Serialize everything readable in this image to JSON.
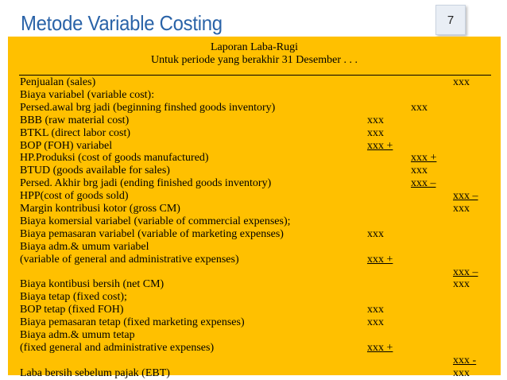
{
  "slide": {
    "title": "Metode Variable Costing",
    "page_number": "7"
  },
  "report": {
    "title": "Laporan Laba-Rugi",
    "period": "Untuk periode yang berakhir 31 Desember . . .",
    "rows": [
      {
        "label": "Penjualan (sales)",
        "c3": "xxx"
      },
      {
        "label": "Biaya variabel (variable cost):"
      },
      {
        "label": "Persed.awal brg jadi (beginning finshed goods inventory)",
        "c2": "xxx"
      },
      {
        "label": "BBB (raw material cost)",
        "c1": "xxx"
      },
      {
        "label": "BTKL (direct labor cost)",
        "c1": "xxx"
      },
      {
        "label": "BOP (FOH) variabel",
        "c1": "xxx +"
      },
      {
        "label": "HP.Produksi (cost of goods manufactured)",
        "c2": "xxx +"
      },
      {
        "label": "BTUD (goods available for sales)",
        "c2": "xxx"
      },
      {
        "label": "Persed. Akhir brg jadi (ending finished goods inventory)",
        "c2": "xxx –"
      },
      {
        "label": "HPP(cost of goods sold)",
        "c3": "xxx –"
      },
      {
        "label": "Margin kontribusi kotor (gross CM)",
        "c3": "xxx"
      },
      {
        "label": "Biaya komersial variabel (variable of commercial expenses);"
      },
      {
        "label": "Biaya pemasaran variabel (variable of marketing expenses)",
        "c1": "xxx"
      },
      {
        "label": "Biaya adm.& umum variabel"
      },
      {
        "label": "(variable of general and administrative expenses)",
        "c1": "xxx +"
      },
      {
        "c3": "xxx –"
      },
      {
        "label": "Biaya kontibusi bersih (net CM)",
        "c3": "xxx"
      },
      {
        "label": "Biaya tetap (fixed cost);"
      },
      {
        "label": "BOP tetap (fixed FOH)",
        "c1": "xxx"
      },
      {
        "label": "Biaya pemasaran tetap (fixed marketing expenses)",
        "c1": "xxx"
      },
      {
        "label": "Biaya adm.& umum tetap"
      },
      {
        "label": "(fixed general and administrative expenses)",
        "c1": "xxx +"
      },
      {
        "c3": "xxx -"
      },
      {
        "label": "Laba bersih sebelum pajak (EBT)",
        "c3": "xxx"
      }
    ]
  }
}
